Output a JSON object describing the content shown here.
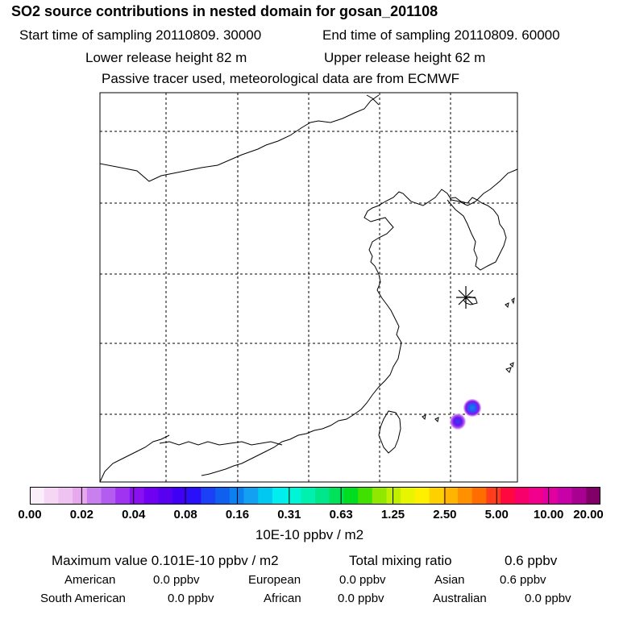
{
  "header": {
    "title": "SO2 source contributions in nested domain for gosan_201108",
    "start_time": "Start time of sampling 20110809. 30000",
    "end_time": "End time of sampling 20110809. 60000",
    "lower_height": "Lower release height   82 m",
    "upper_height": "Upper release height   62 m",
    "tracer_info": "Passive tracer used, meteorological data are from ECMWF"
  },
  "colorbar": {
    "ticks": [
      "0.00",
      "0.02",
      "0.04",
      "0.08",
      "0.16",
      "0.31",
      "0.63",
      "1.25",
      "2.50",
      "5.00",
      "10.00",
      "20.00"
    ],
    "unit": "10E-10 ppbv / m2",
    "colors": [
      "#fbeefb",
      "#f5d6f5",
      "#efc3f1",
      "#e8a8ee",
      "#c97fee",
      "#b55cf0",
      "#a032f2",
      "#8a10f0",
      "#7000f2",
      "#5800f0",
      "#4000f6",
      "#2a10f8",
      "#1c40f6",
      "#1060f0",
      "#0c80f0",
      "#14a0f2",
      "#00c8f0",
      "#00eeee",
      "#00f5d8",
      "#00f0b0",
      "#00e68a",
      "#00e25a",
      "#00dc20",
      "#40e000",
      "#90e800",
      "#c0f000",
      "#e8f500",
      "#fff000",
      "#ffd000",
      "#ffb400",
      "#ff9000",
      "#ff6c00",
      "#ff3c1c",
      "#ff0840",
      "#f8006c",
      "#f0008c",
      "#e000a0",
      "#c800a8",
      "#a80090",
      "#800068"
    ]
  },
  "stats": {
    "maximum": "Maximum value  0.101E-10 ppbv / m2",
    "total_label": "Total mixing ratio",
    "total_value": "0.6 ppbv"
  },
  "sources": [
    {
      "label": "American",
      "value": "0.0 ppbv"
    },
    {
      "label": "European",
      "value": "0.0 ppbv"
    },
    {
      "label": "Asian",
      "value": "0.6 ppbv"
    },
    {
      "label": "South American",
      "value": "0.0 ppbv"
    },
    {
      "label": "African",
      "value": "0.0 ppbv"
    },
    {
      "label": "Australian",
      "value": "0.0 ppbv"
    }
  ]
}
